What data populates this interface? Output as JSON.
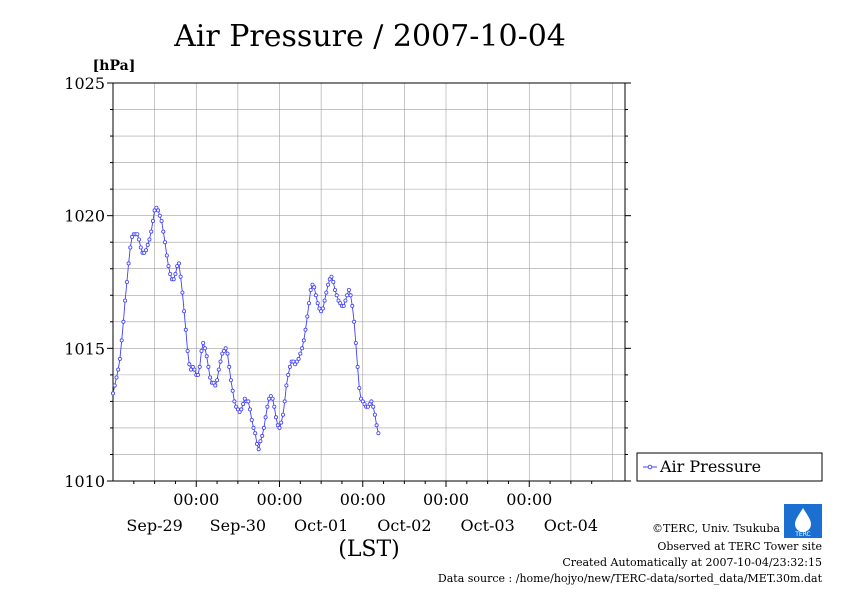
{
  "chart_data": {
    "type": "line",
    "title": "Air Pressure / 2007-10-04",
    "y_unit": "[hPa]",
    "xlabel": "(LST)",
    "ylim": [
      1010,
      1025
    ],
    "y_ticks": [
      1010,
      1015,
      1020,
      1025
    ],
    "x_tick_labels": [
      "00:00",
      "00:00",
      "00:00",
      "00:00",
      "00:00"
    ],
    "date_labels": [
      "Sep-29",
      "Sep-30",
      "Oct-01",
      "Oct-02",
      "Oct-03",
      "Oct-04"
    ],
    "grid": true,
    "legend_position": "right",
    "series": [
      {
        "name": "Air Pressure",
        "color": "#4040ff",
        "marker": "open-circle",
        "x_start": "2007-09-28T00:00",
        "x_step_hours": 0.5,
        "values": [
          1013.3,
          1013.6,
          1013.9,
          1014.2,
          1014.6,
          1015.3,
          1016.0,
          1016.8,
          1017.5,
          1018.2,
          1018.8,
          1019.2,
          1019.3,
          1019.3,
          1019.3,
          1019.1,
          1018.8,
          1018.6,
          1018.6,
          1018.7,
          1018.9,
          1019.1,
          1019.4,
          1019.8,
          1020.2,
          1020.3,
          1020.2,
          1020.0,
          1019.8,
          1019.4,
          1019.0,
          1018.5,
          1018.1,
          1017.8,
          1017.6,
          1017.6,
          1017.8,
          1018.1,
          1018.2,
          1017.7,
          1017.1,
          1016.4,
          1015.7,
          1014.9,
          1014.4,
          1014.2,
          1014.3,
          1014.2,
          1014.0,
          1014.0,
          1014.3,
          1014.9,
          1015.2,
          1015.0,
          1014.7,
          1014.3,
          1013.9,
          1013.7,
          1013.7,
          1013.6,
          1013.8,
          1014.2,
          1014.5,
          1014.8,
          1014.9,
          1015.0,
          1014.8,
          1014.3,
          1013.8,
          1013.4,
          1013.0,
          1012.8,
          1012.7,
          1012.6,
          1012.7,
          1012.9,
          1013.1,
          1013.0,
          1013.0,
          1012.7,
          1012.3,
          1012.0,
          1011.8,
          1011.4,
          1011.2,
          1011.5,
          1011.7,
          1012.0,
          1012.4,
          1012.8,
          1013.1,
          1013.2,
          1013.1,
          1012.8,
          1012.4,
          1012.1,
          1012.0,
          1012.2,
          1012.5,
          1013.0,
          1013.6,
          1014.0,
          1014.3,
          1014.5,
          1014.5,
          1014.4,
          1014.5,
          1014.6,
          1014.8,
          1015.0,
          1015.3,
          1015.7,
          1016.2,
          1016.7,
          1017.2,
          1017.4,
          1017.3,
          1017.0,
          1016.7,
          1016.5,
          1016.4,
          1016.5,
          1016.8,
          1017.1,
          1017.4,
          1017.6,
          1017.7,
          1017.5,
          1017.2,
          1017.0,
          1016.8,
          1016.7,
          1016.6,
          1016.6,
          1016.8,
          1017.0,
          1017.2,
          1017.0,
          1016.6,
          1016.0,
          1015.2,
          1014.3,
          1013.5,
          1013.1,
          1013.0,
          1012.9,
          1012.8,
          1012.8,
          1012.9,
          1013.0,
          1012.8,
          1012.5,
          1012.1,
          1011.8
        ]
      }
    ]
  },
  "credits": {
    "copyright": "©TERC, Univ. Tsukuba",
    "observed": "Observed at TERC Tower site",
    "created": "Created Automatically at 2007-10-04/23:32:15",
    "source": "Data source : /home/hojyo/new/TERC-data/sorted_data/MET.30m.dat",
    "logo_text": "TERC"
  }
}
